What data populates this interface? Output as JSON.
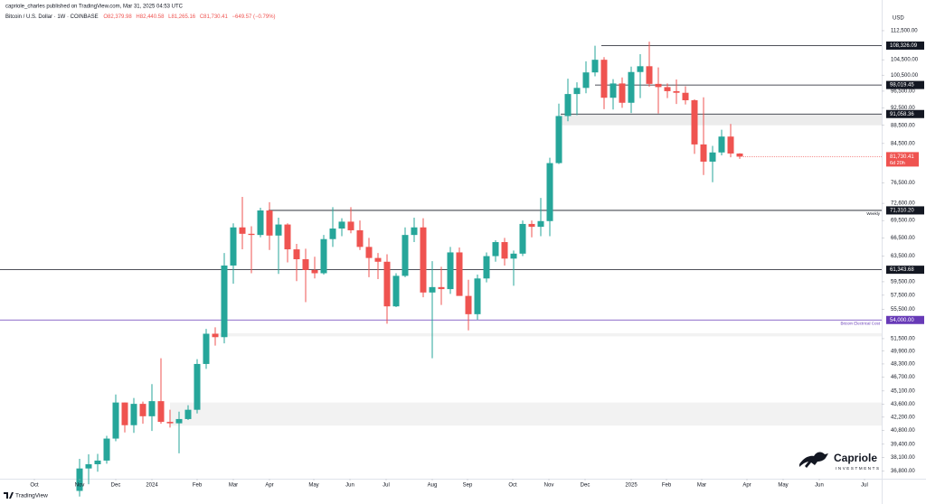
{
  "publisher": "capriole_charles published on TradingView.com, Mar 31, 2025 04:53 UTC",
  "footer_brand": "TradingView",
  "logo": {
    "name": "Capriole",
    "tagline": "INVESTMENTS"
  },
  "chart_data": {
    "type": "candlestick",
    "symbol": "Bitcoin / U.S. Dollar · 1W · COINBASE",
    "ohlc_labels": [
      "O82,379.98",
      "H82,440.58",
      "L81,265.16",
      "C81,730.41"
    ],
    "change_label": "−649.57 (−0.79%)",
    "currency": "USD",
    "log_scale": true,
    "up_color": "#26a69a",
    "down_color": "#ef5350",
    "categories": [
      null,
      null,
      null,
      null,
      null,
      null,
      null,
      null,
      null,
      null,
      null,
      null,
      null,
      null,
      null,
      null,
      null,
      null,
      null,
      null,
      null,
      null,
      null,
      null,
      null,
      null,
      null,
      null,
      null,
      null,
      null,
      null,
      null,
      null,
      null,
      null,
      null,
      null,
      null,
      null,
      null,
      null,
      null,
      null,
      null,
      null,
      null,
      null,
      null,
      null,
      null,
      null,
      null,
      null,
      null,
      null,
      null,
      null,
      null,
      null,
      null,
      null,
      null,
      null,
      null,
      null,
      null,
      null,
      null,
      null,
      null,
      null,
      null,
      null
    ],
    "open": [
      35000,
      37050,
      37450,
      37800,
      39970,
      43800,
      41350,
      43650,
      42300,
      43950,
      41700,
      41550,
      42000,
      43000,
      48300,
      52150,
      51700,
      62000,
      68300,
      67200,
      67000,
      71300,
      66900,
      68800,
      64600,
      63000,
      61300,
      60800,
      66300,
      68100,
      69300,
      67800,
      65000,
      63200,
      62600,
      55900,
      60400,
      67000,
      68300,
      57900,
      58700,
      58400,
      64100,
      57400,
      54800,
      60000,
      63500,
      65800,
      63100,
      63900,
      68900,
      68400,
      69400,
      80400,
      90600,
      95800,
      97300,
      101200,
      104500,
      94900,
      98400,
      93700,
      101300,
      102800,
      98300,
      97500,
      96500,
      96100,
      94300,
      84300,
      80700,
      82600,
      86000,
      82379.98
    ],
    "high": [
      37970,
      38400,
      38450,
      40250,
      44700,
      43800,
      44300,
      43900,
      45900,
      49000,
      43000,
      42800,
      43500,
      48900,
      52800,
      53000,
      64000,
      69000,
      73800,
      68500,
      71800,
      72800,
      70000,
      69000,
      65500,
      64700,
      63400,
      67000,
      71900,
      69900,
      71900,
      69500,
      66500,
      64000,
      63800,
      60800,
      68300,
      70000,
      69900,
      62700,
      61800,
      65000,
      64900,
      59800,
      60600,
      64100,
      66100,
      66500,
      64400,
      69500,
      69500,
      73600,
      81500,
      93500,
      99600,
      98700,
      104100,
      108300,
      105200,
      99500,
      99900,
      102700,
      106000,
      109400,
      102500,
      98400,
      99400,
      97700,
      94500,
      95000,
      84000,
      87500,
      88800,
      82440.58
    ],
    "low": [
      34500,
      35600,
      36750,
      37500,
      39700,
      40600,
      40550,
      41500,
      40750,
      41500,
      41100,
      38500,
      41900,
      42600,
      47700,
      50600,
      50900,
      59200,
      64600,
      60800,
      66600,
      64500,
      60700,
      62500,
      59600,
      56500,
      60000,
      60600,
      65000,
      66800,
      67300,
      64500,
      60200,
      59900,
      53500,
      55800,
      60200,
      65800,
      57200,
      49000,
      56100,
      57700,
      58000,
      52600,
      54000,
      59400,
      62600,
      62000,
      58900,
      63500,
      66600,
      66800,
      66800,
      80200,
      89400,
      90800,
      96000,
      100200,
      92200,
      92100,
      92500,
      91300,
      94800,
      97600,
      91200,
      94800,
      93400,
      93300,
      82300,
      78000,
      76600,
      82000,
      81600,
      81265.16
    ],
    "close": [
      37050,
      37450,
      37800,
      39970,
      43800,
      41350,
      43650,
      42300,
      43950,
      41700,
      41550,
      42000,
      43000,
      48300,
      52150,
      51700,
      62000,
      68300,
      67200,
      67000,
      71300,
      66900,
      68800,
      64600,
      63000,
      61300,
      60800,
      66300,
      68100,
      69300,
      67800,
      65000,
      63200,
      62600,
      55900,
      60400,
      67000,
      68300,
      57900,
      58700,
      58400,
      64100,
      57400,
      54800,
      60000,
      63500,
      65800,
      63100,
      63900,
      68900,
      68400,
      69400,
      80400,
      90600,
      95800,
      97300,
      101200,
      104500,
      94900,
      98400,
      93700,
      101300,
      102800,
      98300,
      97500,
      96500,
      96100,
      94300,
      84300,
      80700,
      82600,
      86000,
      82380,
      81730.41
    ],
    "xlim": [
      -8.8,
      88.7
    ],
    "xticks": [
      {
        "value": -5,
        "label": "Oct"
      },
      {
        "value": 0,
        "label": "Nov"
      },
      {
        "value": 4,
        "label": "Dec"
      },
      {
        "value": 8,
        "label": "2024"
      },
      {
        "value": 13,
        "label": "Feb"
      },
      {
        "value": 17,
        "label": "Mar"
      },
      {
        "value": 21,
        "label": "Apr"
      },
      {
        "value": 25.9,
        "label": "May"
      },
      {
        "value": 29.9,
        "label": "Jun"
      },
      {
        "value": 33.9,
        "label": "Jul"
      },
      {
        "value": 39,
        "label": "Aug"
      },
      {
        "value": 42.9,
        "label": "Sep"
      },
      {
        "value": 47.9,
        "label": "Oct"
      },
      {
        "value": 51.9,
        "label": "Nov"
      },
      {
        "value": 55.9,
        "label": "Dec"
      },
      {
        "value": 61,
        "label": "2025"
      },
      {
        "value": 64.9,
        "label": "Feb"
      },
      {
        "value": 68.8,
        "label": "Mar"
      },
      {
        "value": 73.8,
        "label": "Apr"
      },
      {
        "value": 77.8,
        "label": "May"
      },
      {
        "value": 81.8,
        "label": "Jun"
      },
      {
        "value": 86.8,
        "label": "Jul"
      }
    ],
    "ylim": [
      36100,
      119400
    ],
    "yticks": [
      {
        "value": 112500,
        "label": "112,500.00"
      },
      {
        "value": 104500,
        "label": "104,500.00"
      },
      {
        "value": 100500,
        "label": "100,500.00"
      },
      {
        "value": 96500,
        "label": "96,500.00"
      },
      {
        "value": 92500,
        "label": "92,500.00"
      },
      {
        "value": 88500,
        "label": "88,500.00"
      },
      {
        "value": 84500,
        "label": "84,500.00"
      },
      {
        "value": 76500,
        "label": "76,500.00"
      },
      {
        "value": 72600,
        "label": "72,600.00"
      },
      {
        "value": 69500,
        "label": "69,500.00"
      },
      {
        "value": 66500,
        "label": "66,500.00"
      },
      {
        "value": 63500,
        "label": "63,500.00"
      },
      {
        "value": 59500,
        "label": "59,500.00"
      },
      {
        "value": 57500,
        "label": "57,500.00"
      },
      {
        "value": 55500,
        "label": "55,500.00"
      },
      {
        "value": 51500,
        "label": "51,500.00"
      },
      {
        "value": 49900,
        "label": "49,900.00"
      },
      {
        "value": 48300,
        "label": "48,300.00"
      },
      {
        "value": 46700,
        "label": "46,700.00"
      },
      {
        "value": 45100,
        "label": "45,100.00"
      },
      {
        "value": 43600,
        "label": "43,600.00"
      },
      {
        "value": 42200,
        "label": "42,200.00"
      },
      {
        "value": 40800,
        "label": "40,800.00"
      },
      {
        "value": 39400,
        "label": "39,400.00"
      },
      {
        "value": 38100,
        "label": "38,100.00"
      },
      {
        "value": 36800,
        "label": "36,800.00"
      }
    ],
    "grid": false,
    "levels": [
      {
        "value": 108326.09,
        "label": "108,326.09",
        "color": "#131722",
        "start": 57.7
      },
      {
        "value": 98019.45,
        "label": "98,019.45",
        "color": "#131722",
        "start": 57
      },
      {
        "value": 91058.36,
        "label": "91,058.36",
        "color": "#131722",
        "start": 53.2
      },
      {
        "value": 71310.2,
        "label": "71,310.20",
        "color": "#131722",
        "start": 20.9,
        "note": "Weekly"
      },
      {
        "value": 61343.68,
        "label": "61,343.68",
        "color": "#131722"
      },
      {
        "value": 54000,
        "label": "54,000.00",
        "color": "#673ab7",
        "note": "Bitcoin Electrical Cost"
      }
    ],
    "zones": [
      {
        "from": 88500,
        "to": 91058.36,
        "start": 53.2,
        "color": "#ececec"
      },
      {
        "from": 51800,
        "to": 52200,
        "start": 15,
        "color": "#f2f2f2"
      },
      {
        "from": 41300,
        "to": 43800,
        "start": 10,
        "color": "#f2f2f2"
      }
    ],
    "last_price": {
      "value": 81730.41,
      "label": "81,730.41",
      "countdown": "6d 20h"
    }
  }
}
